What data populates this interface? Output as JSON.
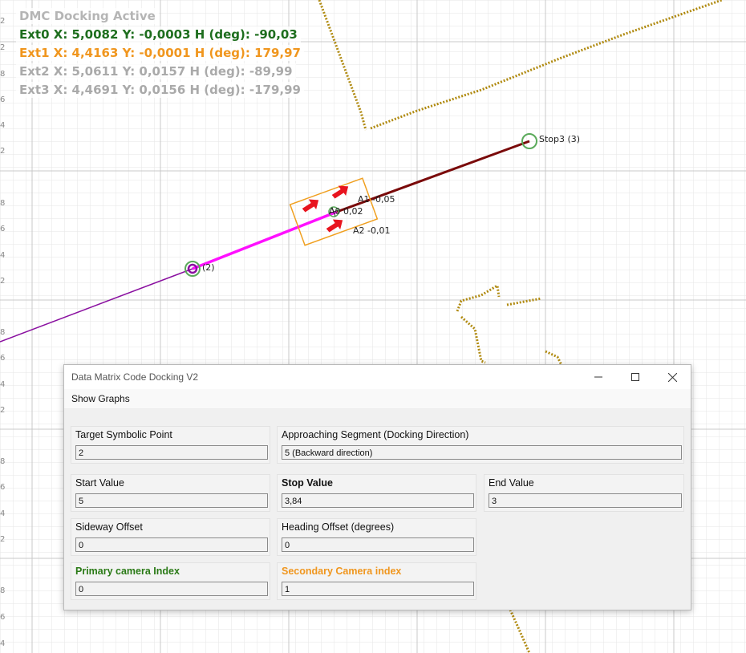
{
  "overlay": {
    "status": "DMC Docking Active",
    "ext0": "Ext0 X: 5,0082 Y: -0,0003 H (deg): -90,03",
    "ext1": "Ext1 X: 4,4163 Y: -0,0001 H (deg): 179,97",
    "ext2": "Ext2 X: 5,0611 Y: 0,0157 H (deg): -89,99",
    "ext3": "Ext3 X: 4,4691 Y: 0,0156 H (deg): -179,99",
    "colors": {
      "status": "#b5b5b5",
      "ext0": "#1e6e1e",
      "ext1": "#f0961e",
      "ext2": "#aaaaaa",
      "ext3": "#aaaaaa"
    }
  },
  "axis_labels": [
    "2",
    "2",
    "8",
    "6",
    "4",
    "2",
    "8",
    "6",
    "4",
    "2",
    "8",
    "6",
    "4",
    "2",
    "8",
    "6",
    "4",
    "2",
    "8",
    "6",
    "4"
  ],
  "map_labels": {
    "stop3": "Stop3 (3)",
    "point2": "(2)",
    "a1": "A1 -0,05",
    "a0": "A0 0,02",
    "a2": "A2 -0,01"
  },
  "window": {
    "title": "Data Matrix Code Docking V2",
    "menu": "Show Graphs",
    "fields": {
      "target_point": {
        "label": "Target Symbolic Point",
        "value": "2"
      },
      "approach_segment": {
        "label": "Approaching Segment (Docking Direction)",
        "value": "5 (Backward direction)"
      },
      "start_value": {
        "label": "Start Value",
        "value": "5"
      },
      "stop_value": {
        "label": "Stop Value",
        "value": "3,84"
      },
      "end_value": {
        "label": "End Value",
        "value": "3"
      },
      "sideway_offset": {
        "label": "Sideway Offset",
        "value": "0"
      },
      "heading_offset": {
        "label": "Heading Offset (degrees)",
        "value": "0"
      },
      "primary_camera": {
        "label": "Primary camera Index",
        "value": "0"
      },
      "secondary_camera": {
        "label": "Secondary Camera index",
        "value": "1"
      }
    },
    "colors": {
      "primary_label": "#2a7a16",
      "secondary_label": "#f0961e"
    }
  }
}
